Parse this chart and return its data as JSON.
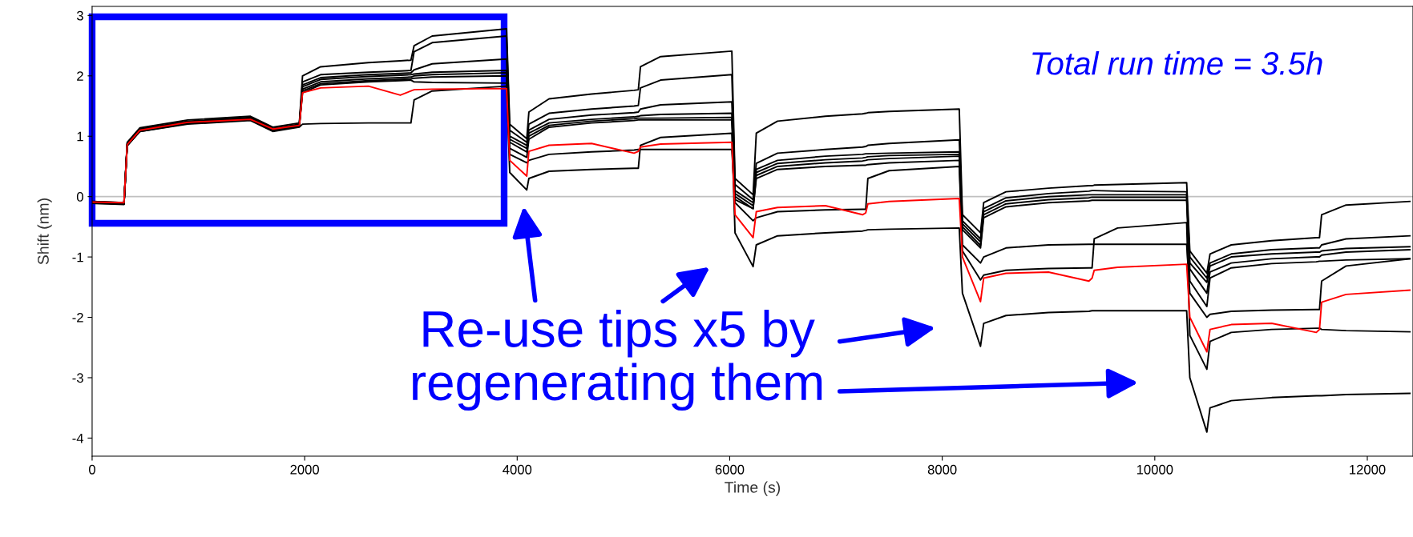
{
  "chart_data": {
    "type": "line",
    "xlabel": "Time (s)",
    "ylabel": "Shift (nm)",
    "xlim": [
      0,
      12430
    ],
    "xticks": [
      0,
      2000,
      4000,
      6000,
      8000,
      10000,
      12000
    ],
    "ylim": [
      -4.3,
      3.15
    ],
    "yticks": [
      -4,
      -3,
      -2,
      -1,
      0,
      1,
      2,
      3
    ],
    "grid": false,
    "marker": "none",
    "line_style": "solid",
    "ref_lines": [
      {
        "axis": "y",
        "value": 0,
        "color": "#c0c0c0"
      }
    ],
    "annotations": [
      "Total run time = 3.5h",
      "Re-use tips x5 by\nregenerating them"
    ],
    "x": [
      0,
      300,
      330,
      450,
      900,
      1490,
      1700,
      1950,
      1980,
      2150,
      2600,
      2900,
      3000,
      3030,
      3200,
      3900,
      3930,
      4090,
      4110,
      4300,
      4700,
      5100,
      5140,
      5160,
      5350,
      6020,
      6050,
      6220,
      6250,
      6450,
      6900,
      7250,
      7280,
      7300,
      7500,
      8160,
      8190,
      8360,
      8390,
      8600,
      9000,
      9380,
      9410,
      9430,
      9650,
      10300,
      10330,
      10490,
      10520,
      10720,
      11100,
      11520,
      11550,
      11570,
      11800,
      12400
    ],
    "series": [
      {
        "color": "#000000",
        "values": [
          -0.08,
          -0.1,
          0.9,
          1.14,
          1.27,
          1.33,
          1.15,
          1.22,
          2.0,
          2.15,
          2.22,
          2.25,
          2.26,
          2.5,
          2.66,
          2.78,
          1.2,
          0.96,
          1.4,
          1.62,
          1.7,
          1.76,
          1.77,
          2.15,
          2.32,
          2.41,
          0.3,
          0.03,
          1.05,
          1.25,
          1.33,
          1.37,
          1.38,
          1.39,
          1.41,
          1.45,
          -0.3,
          -0.6,
          -0.1,
          0.08,
          0.14,
          0.18,
          0.18,
          0.19,
          0.2,
          0.23,
          -0.9,
          -1.27,
          -0.95,
          -0.8,
          -0.73,
          -0.68,
          -0.68,
          -0.3,
          -0.14,
          -0.08
        ]
      },
      {
        "color": "#000000",
        "values": [
          -0.08,
          -0.1,
          0.88,
          1.12,
          1.25,
          1.31,
          1.13,
          1.2,
          1.9,
          2.02,
          2.06,
          2.08,
          2.09,
          2.4,
          2.55,
          2.66,
          1.1,
          0.9,
          1.2,
          1.38,
          1.45,
          1.5,
          1.51,
          1.8,
          1.93,
          2.02,
          0.2,
          -0.05,
          0.55,
          0.72,
          0.78,
          0.82,
          0.83,
          0.85,
          0.88,
          0.94,
          -0.4,
          -0.7,
          -0.2,
          -0.02,
          0.05,
          0.09,
          0.1,
          0.1,
          0.09,
          0.08,
          -1.0,
          -1.35,
          -1.1,
          -0.95,
          -0.88,
          -0.85,
          -0.85,
          -0.8,
          -0.7,
          -0.65
        ]
      },
      {
        "color": "#000000",
        "values": [
          -0.09,
          -0.11,
          0.87,
          1.1,
          1.24,
          1.3,
          1.12,
          1.19,
          1.85,
          1.97,
          2.02,
          2.04,
          2.05,
          2.1,
          2.2,
          2.28,
          1.0,
          0.85,
          1.1,
          1.28,
          1.35,
          1.39,
          1.4,
          1.45,
          1.52,
          1.57,
          0.1,
          -0.1,
          0.45,
          0.6,
          0.67,
          0.7,
          0.71,
          0.71,
          0.72,
          0.74,
          -0.45,
          -0.75,
          -0.25,
          -0.07,
          0.0,
          0.03,
          0.03,
          0.03,
          0.03,
          0.03,
          -1.1,
          -1.42,
          -1.15,
          -1.0,
          -0.95,
          -0.92,
          -0.92,
          -0.9,
          -0.86,
          -0.83
        ]
      },
      {
        "color": "#000000",
        "values": [
          -0.1,
          -0.12,
          0.86,
          1.1,
          1.23,
          1.29,
          1.11,
          1.18,
          1.82,
          1.94,
          1.99,
          2.01,
          2.02,
          2.03,
          2.06,
          2.09,
          0.95,
          0.8,
          1.05,
          1.22,
          1.28,
          1.32,
          1.33,
          1.34,
          1.36,
          1.38,
          0.05,
          -0.15,
          0.4,
          0.55,
          0.61,
          0.64,
          0.65,
          0.66,
          0.68,
          0.7,
          -0.5,
          -0.81,
          -0.3,
          -0.12,
          -0.05,
          -0.02,
          -0.01,
          -0.01,
          -0.01,
          -0.01,
          -1.2,
          -1.6,
          -1.25,
          -1.1,
          -1.03,
          -1.0,
          -1.0,
          -0.97,
          -0.92,
          -0.88
        ]
      },
      {
        "color": "#000000",
        "values": [
          -0.1,
          -0.12,
          0.86,
          1.09,
          1.22,
          1.28,
          1.1,
          1.18,
          1.78,
          1.9,
          1.95,
          1.97,
          1.98,
          2.0,
          2.02,
          2.05,
          0.9,
          0.74,
          1.0,
          1.18,
          1.25,
          1.29,
          1.3,
          1.3,
          1.3,
          1.31,
          0.0,
          -0.2,
          0.35,
          0.5,
          0.56,
          0.59,
          0.6,
          0.61,
          0.63,
          0.67,
          -0.55,
          -0.85,
          -0.35,
          -0.17,
          -0.1,
          -0.07,
          -0.06,
          -0.06,
          -0.06,
          -0.06,
          -1.4,
          -1.82,
          -1.35,
          -1.18,
          -1.11,
          -1.08,
          -1.07,
          -1.07,
          -1.05,
          -1.03
        ]
      },
      {
        "color": "#000000",
        "values": [
          -0.1,
          -0.12,
          0.85,
          1.09,
          1.22,
          1.28,
          1.1,
          1.17,
          1.75,
          1.87,
          1.92,
          1.94,
          1.95,
          1.96,
          1.98,
          2.0,
          0.8,
          0.65,
          0.95,
          1.15,
          1.22,
          1.26,
          1.27,
          1.27,
          1.27,
          1.27,
          -0.05,
          -0.2,
          0.3,
          0.45,
          0.5,
          0.52,
          0.52,
          0.53,
          0.56,
          0.6,
          -0.8,
          -1.1,
          -1.0,
          -0.85,
          -0.8,
          -0.79,
          -0.79,
          -0.79,
          -0.79,
          -0.79,
          -1.6,
          -2.0,
          -1.95,
          -1.9,
          -1.88,
          -1.87,
          -1.87,
          -1.4,
          -1.15,
          -1.03
        ]
      },
      {
        "color": "#000000",
        "values": [
          -0.11,
          -0.12,
          0.85,
          1.08,
          1.21,
          1.27,
          1.09,
          1.16,
          1.72,
          1.85,
          1.9,
          1.92,
          1.93,
          1.9,
          1.89,
          1.88,
          0.7,
          0.56,
          0.6,
          0.7,
          0.74,
          0.77,
          0.78,
          0.78,
          0.78,
          0.78,
          -0.1,
          -0.4,
          -0.35,
          -0.25,
          -0.22,
          -0.21,
          -0.21,
          0.3,
          0.43,
          0.5,
          -0.9,
          -1.38,
          -1.3,
          -1.22,
          -1.19,
          -1.18,
          -1.18,
          -0.7,
          -0.52,
          -0.43,
          -2.3,
          -2.86,
          -2.4,
          -2.25,
          -2.2,
          -2.18,
          -2.18,
          -2.2,
          -2.22,
          -2.24
        ]
      },
      {
        "color": "#000000",
        "values": [
          -0.11,
          -0.13,
          0.84,
          1.08,
          1.2,
          1.26,
          1.08,
          1.15,
          1.2,
          1.21,
          1.22,
          1.22,
          1.22,
          1.6,
          1.75,
          1.83,
          0.4,
          0.11,
          0.3,
          0.42,
          0.45,
          0.47,
          0.47,
          0.85,
          0.98,
          1.05,
          -0.6,
          -1.16,
          -0.8,
          -0.65,
          -0.6,
          -0.57,
          -0.56,
          -0.55,
          -0.54,
          -0.52,
          -1.6,
          -2.48,
          -2.1,
          -1.97,
          -1.92,
          -1.9,
          -1.89,
          -1.89,
          -1.89,
          -1.89,
          -3.0,
          -3.9,
          -3.5,
          -3.38,
          -3.33,
          -3.3,
          -3.3,
          -3.3,
          -3.28,
          -3.26
        ]
      },
      {
        "color": "#ff0000",
        "values": [
          -0.09,
          -0.1,
          0.86,
          1.1,
          1.23,
          1.28,
          1.12,
          1.18,
          1.72,
          1.8,
          1.83,
          1.68,
          1.75,
          1.77,
          1.78,
          1.79,
          0.6,
          0.34,
          0.75,
          0.85,
          0.88,
          0.72,
          0.75,
          0.82,
          0.87,
          0.9,
          -0.3,
          -0.68,
          -0.25,
          -0.18,
          -0.15,
          -0.3,
          -0.27,
          -0.12,
          -0.08,
          -0.03,
          -1.0,
          -1.74,
          -1.35,
          -1.27,
          -1.25,
          -1.4,
          -1.35,
          -1.22,
          -1.17,
          -1.12,
          -2.0,
          -2.57,
          -2.2,
          -2.12,
          -2.1,
          -2.25,
          -2.2,
          -1.75,
          -1.62,
          -1.55
        ]
      }
    ]
  }
}
